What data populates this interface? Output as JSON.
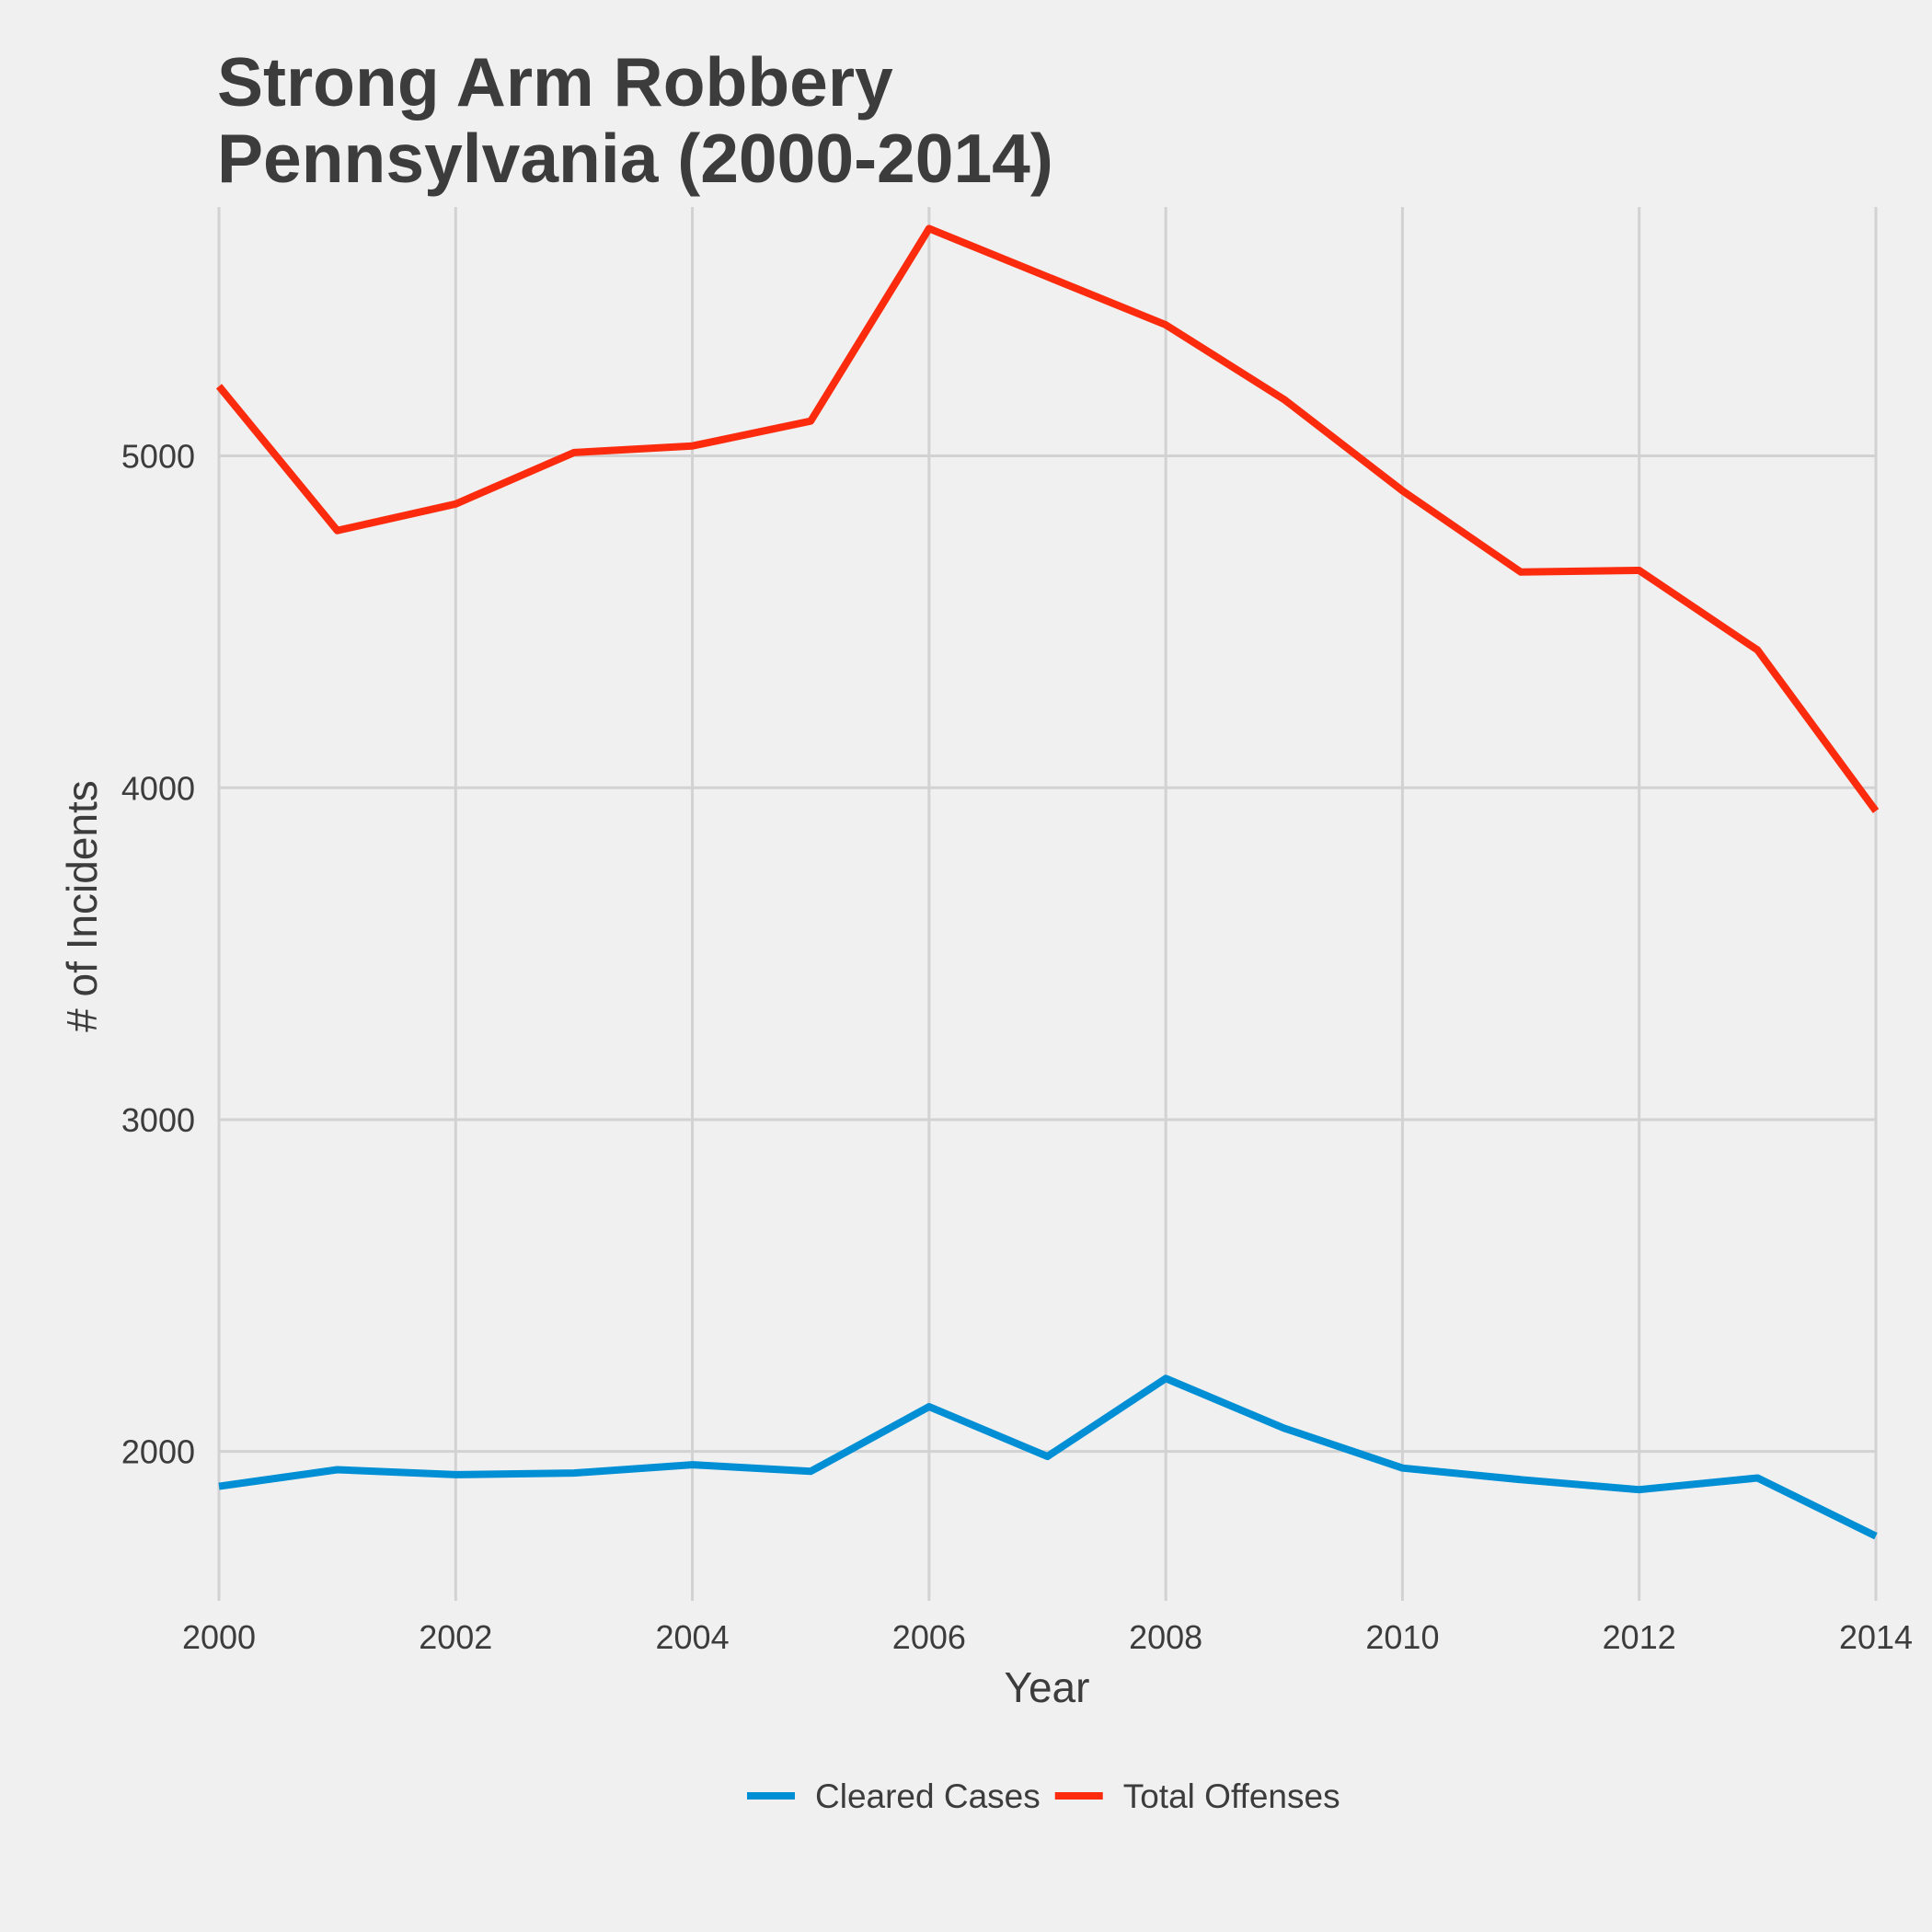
{
  "chart_data": {
    "type": "line",
    "title": "Strong Arm Robbery",
    "subtitle": "Pennsylvania (2000-2014)",
    "xlabel": "Year",
    "ylabel": "# of Incidents",
    "x": [
      2000,
      2001,
      2002,
      2003,
      2004,
      2005,
      2006,
      2007,
      2008,
      2009,
      2010,
      2011,
      2012,
      2013,
      2014
    ],
    "xlim": [
      2000,
      2014
    ],
    "ylim": [
      1550,
      5750
    ],
    "x_ticks": [
      2000,
      2002,
      2004,
      2006,
      2008,
      2010,
      2012,
      2014
    ],
    "x_tick_labels": [
      "2000",
      "2002",
      "2004",
      "2006",
      "2008",
      "2010",
      "2012",
      "2014"
    ],
    "y_ticks": [
      2000,
      3000,
      4000,
      5000
    ],
    "y_tick_labels": [
      "2000",
      "3000",
      "4000",
      "5000"
    ],
    "grid": true,
    "legend_position": "bottom",
    "series": [
      {
        "name": "Cleared Cases",
        "color": "#008fd5",
        "values": [
          1895,
          1945,
          1930,
          1935,
          1960,
          1940,
          2135,
          1985,
          2220,
          2070,
          1950,
          1915,
          1885,
          1920,
          1745
        ]
      },
      {
        "name": "Total Offenses",
        "color": "#fc2b0d",
        "values": [
          5210,
          4775,
          4855,
          5010,
          5030,
          5105,
          5685,
          5540,
          5395,
          5170,
          4895,
          4650,
          4655,
          4415,
          3930
        ]
      }
    ]
  }
}
